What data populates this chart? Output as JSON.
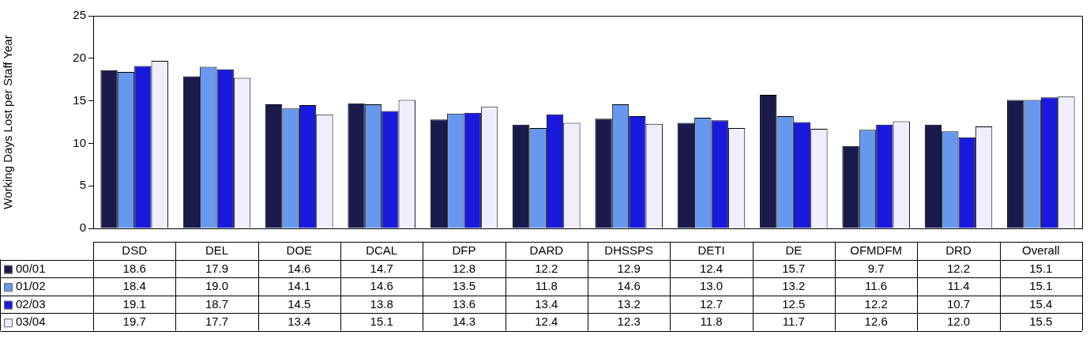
{
  "chart_data": {
    "type": "bar",
    "ylabel": "Working Days Lost per Staff Year",
    "categories": [
      "DSD",
      "DEL",
      "DOE",
      "DCAL",
      "DFP",
      "DARD",
      "DHSSPS",
      "DETI",
      "DE",
      "OFMDFM",
      "DRD",
      "Overall"
    ],
    "series": [
      {
        "name": "00/01",
        "color": "#1a1a4d",
        "values": [
          18.6,
          17.9,
          14.6,
          14.7,
          12.8,
          12.2,
          12.9,
          12.4,
          15.7,
          9.7,
          12.2,
          15.1
        ]
      },
      {
        "name": "01/02",
        "color": "#6699ee",
        "values": [
          18.4,
          19.0,
          14.1,
          14.6,
          13.5,
          11.8,
          14.6,
          13.0,
          13.2,
          11.6,
          11.4,
          15.1
        ],
        "value_labels": [
          "18.4",
          "19.0",
          "14.1",
          "14.6",
          "13.5",
          "11.8",
          "14.6",
          "13.0",
          "13.2",
          "11.6",
          "11.4",
          "15.1"
        ]
      },
      {
        "name": "02/03",
        "color": "#1a1add",
        "values": [
          19.1,
          18.7,
          14.5,
          13.8,
          13.6,
          13.4,
          13.2,
          12.7,
          12.5,
          12.2,
          10.7,
          15.4
        ]
      },
      {
        "name": "03/04",
        "color": "#eeeeff",
        "values": [
          19.7,
          17.7,
          13.4,
          15.1,
          14.3,
          12.4,
          12.3,
          11.8,
          11.7,
          12.6,
          12.0,
          15.5
        ],
        "value_labels": [
          "19.7",
          "17.7",
          "13.4",
          "15.1",
          "14.3",
          "12.4",
          "12.3",
          "11.8",
          "11.7",
          "12.6",
          "12.0",
          "15.5"
        ]
      }
    ],
    "ylim": [
      0,
      25
    ],
    "yticks": [
      0,
      5,
      10,
      15,
      20,
      25
    ],
    "grid": false,
    "legend": "bottom",
    "tick_labels": "y",
    "data_labels": true
  }
}
